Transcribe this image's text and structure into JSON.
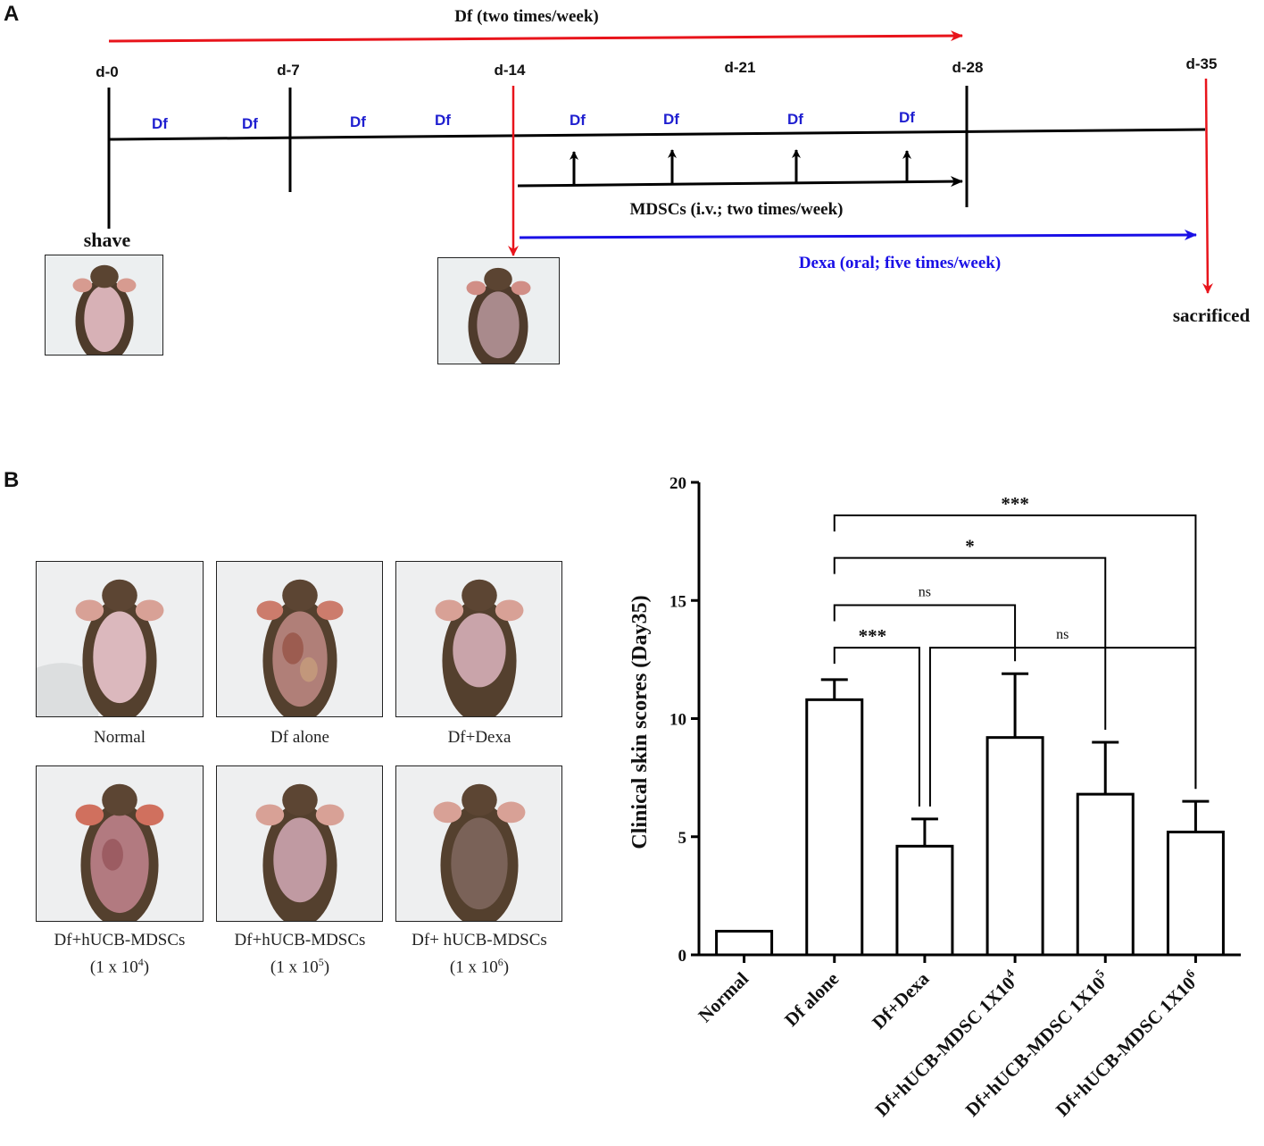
{
  "panel_labels": {
    "a": "A",
    "b": "B"
  },
  "timeline": {
    "top_arrow_label": "Df (two times/week)",
    "days": [
      "d-0",
      "d-7",
      "d-14",
      "d-21",
      "d-28",
      "d-35"
    ],
    "df_marks": [
      "Df",
      "Df",
      "Df",
      "Df",
      "Df",
      "Df",
      "Df",
      "Df"
    ],
    "shave_label": "shave",
    "mdsc_label": "MDSCs (i.v.; two times/week)",
    "dexa_label": "Dexa (oral; five times/week)",
    "sacrificed_label": "sacrificed",
    "colors": {
      "red": "#e8141b",
      "blue": "#1a10e6",
      "dfblue": "#1f1fd0",
      "black": "#000000"
    }
  },
  "photos": {
    "row1": [
      {
        "caption": "Normal",
        "caption2": ""
      },
      {
        "caption": "Df alone",
        "caption2": ""
      },
      {
        "caption": "Df+Dexa",
        "caption2": ""
      }
    ],
    "row2": [
      {
        "caption": "Df+hUCB-MDSCs",
        "dose": "(1 x 10",
        "exp": "4",
        "close": ")"
      },
      {
        "caption": "Df+hUCB-MDSCs",
        "dose": "(1 x 10",
        "exp": "5",
        "close": ")"
      },
      {
        "caption": "Df+ hUCB-MDSCs",
        "dose": "(1 x 10",
        "exp": "6",
        "close": ")"
      }
    ]
  },
  "chart_data": {
    "type": "bar",
    "ylabel": "Clinical skin scores (Day35)",
    "ylim": [
      0,
      20
    ],
    "yticks": [
      0,
      5,
      10,
      15,
      20
    ],
    "categories": [
      {
        "base": "Normal",
        "sup": ""
      },
      {
        "base": "Df alone",
        "sup": ""
      },
      {
        "base": "Df+Dexa",
        "sup": ""
      },
      {
        "base": "Df+hUCB-MDSC 1X10",
        "sup": "4"
      },
      {
        "base": "Df+hUCB-MDSC 1X10",
        "sup": "5"
      },
      {
        "base": "Df+hUCB-MDSC 1X10",
        "sup": "6"
      }
    ],
    "values": [
      1.0,
      10.8,
      4.6,
      9.2,
      6.8,
      5.2
    ],
    "errors": [
      0.0,
      0.85,
      1.15,
      2.7,
      2.2,
      1.3
    ],
    "significance": [
      {
        "from": 1,
        "to": 5,
        "label": "***",
        "level": 18.6
      },
      {
        "from": 1,
        "to": 4,
        "label": "*",
        "level": 16.8
      },
      {
        "from": 1,
        "to": 3,
        "label": "ns",
        "level": 14.8
      },
      {
        "from": 1,
        "to": 2,
        "label": "***",
        "level": 13.0
      },
      {
        "from": 2,
        "to": 5,
        "label": "ns",
        "level": 13.0
      }
    ]
  }
}
